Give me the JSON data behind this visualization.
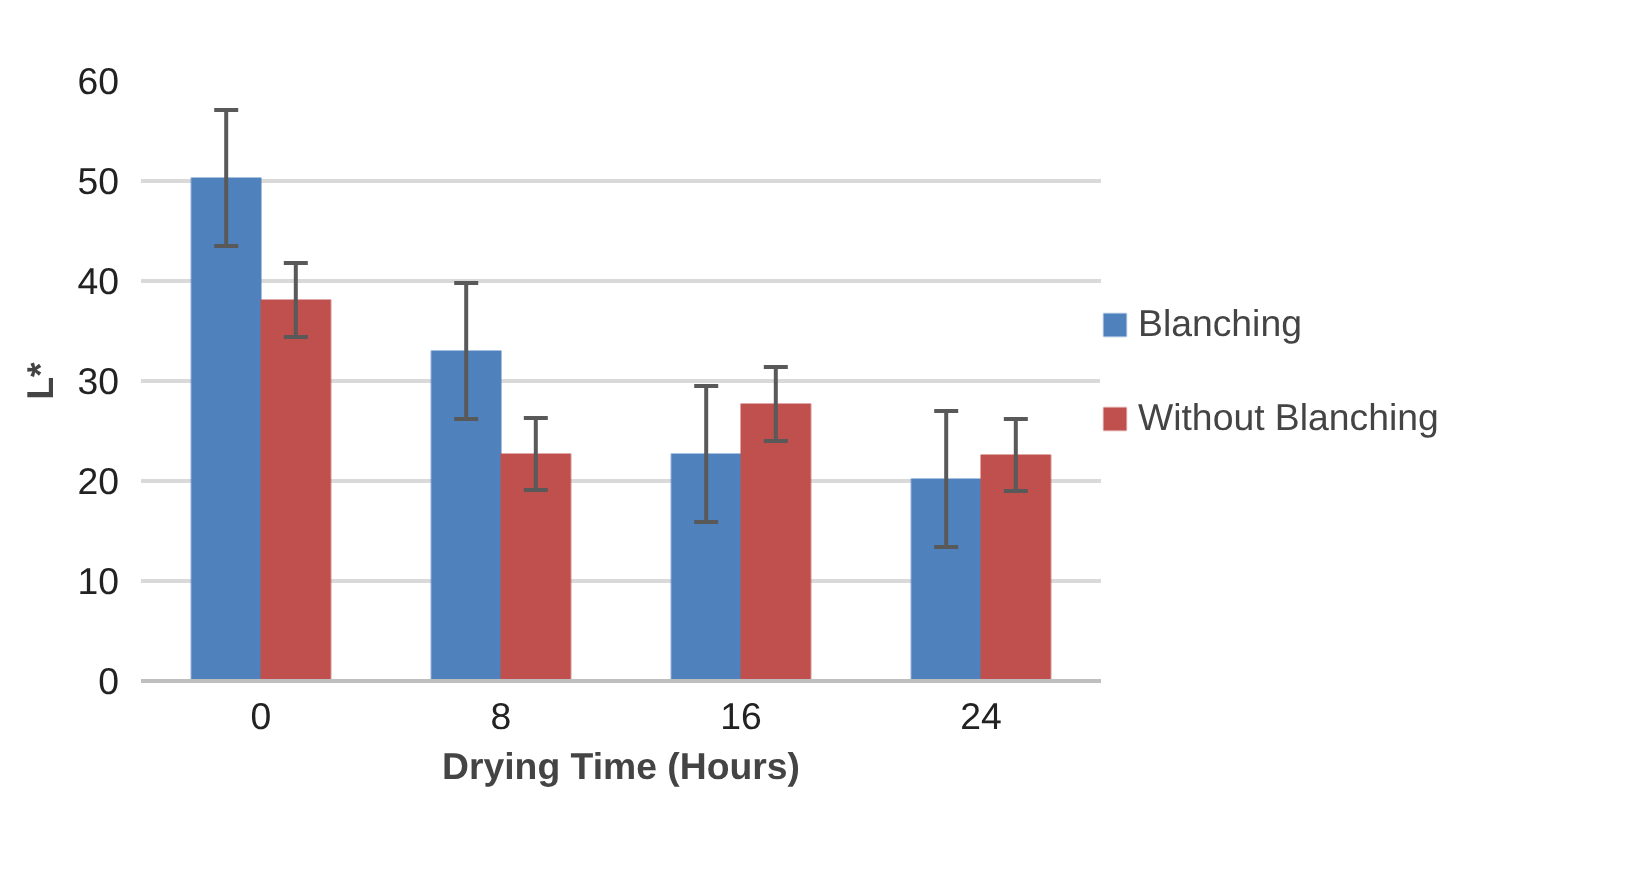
{
  "chart_data": {
    "type": "bar",
    "xlabel": "Drying Time (Hours)",
    "ylabel": "L*",
    "categories": [
      "0",
      "8",
      "16",
      "24"
    ],
    "series": [
      {
        "name": "Blanching",
        "color": "#4f81bd",
        "values": [
          50.3,
          33.0,
          22.7,
          20.2
        ],
        "errors": [
          6.8,
          6.8,
          6.8,
          6.8
        ]
      },
      {
        "name": "Without Blanching",
        "color": "#c0504d",
        "values": [
          38.1,
          22.7,
          27.7,
          22.6
        ],
        "errors": [
          3.7,
          3.6,
          3.7,
          3.6
        ]
      }
    ],
    "ylim": [
      0,
      60
    ],
    "yticks": [
      0,
      10,
      20,
      30,
      40,
      50,
      60
    ],
    "grid": "y",
    "legend": "right"
  }
}
